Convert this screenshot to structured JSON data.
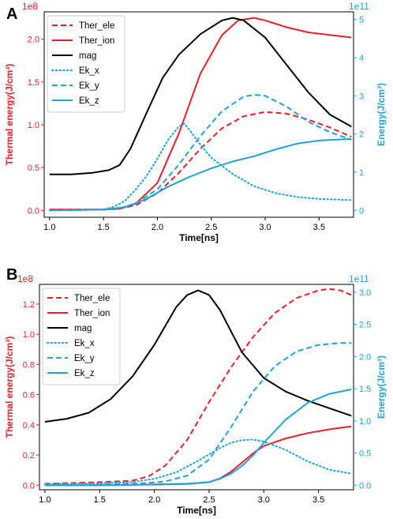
{
  "chart_data": [
    {
      "type": "line",
      "panel_label": "A",
      "xlabel": "Time[ns]",
      "ylabel_left": "Thermal energy(J/cm³)",
      "ylabel_right": "Energy(J/cm³)",
      "left_multiplier": "1e8",
      "right_multiplier": "1e11",
      "xlim": [
        0.95,
        3.82
      ],
      "ylim_left": [
        -0.08,
        2.32
      ],
      "ylim_right": [
        -0.18,
        5.2
      ],
      "x_ticks": [
        "1.0",
        "1.5",
        "2.0",
        "2.5",
        "3.0",
        "3.5"
      ],
      "y_left_ticks": [
        "0.0",
        "0.5",
        "1.0",
        "1.5",
        "2.0"
      ],
      "y_right_ticks": [
        "0",
        "1",
        "2",
        "3",
        "4",
        "5"
      ],
      "legend_position": "upper-left",
      "colors": {
        "left_axis": "#e8222a",
        "right_axis": "#1fa3d8"
      },
      "series": [
        {
          "name": "Ther_ele",
          "axis": "left",
          "color": "#e8222a",
          "style": "dashed",
          "x": [
            1.0,
            1.5,
            1.65,
            1.8,
            2.0,
            2.2,
            2.4,
            2.6,
            2.8,
            3.0,
            3.2,
            3.4,
            3.6,
            3.8
          ],
          "y": [
            0.01,
            0.01,
            0.02,
            0.06,
            0.2,
            0.44,
            0.72,
            0.96,
            1.1,
            1.15,
            1.13,
            1.06,
            0.97,
            0.86
          ]
        },
        {
          "name": "Ther_ion",
          "axis": "left",
          "color": "#e8222a",
          "style": "solid",
          "x": [
            1.0,
            1.5,
            1.65,
            1.8,
            2.0,
            2.2,
            2.4,
            2.6,
            2.75,
            2.9,
            3.0,
            3.2,
            3.4,
            3.6,
            3.8
          ],
          "y": [
            0.01,
            0.01,
            0.02,
            0.08,
            0.32,
            0.9,
            1.6,
            2.05,
            2.22,
            2.25,
            2.22,
            2.14,
            2.08,
            2.05,
            2.02
          ]
        },
        {
          "name": "mag",
          "axis": "left",
          "color": "#000000",
          "style": "solid",
          "x": [
            1.0,
            1.2,
            1.4,
            1.55,
            1.65,
            1.75,
            1.9,
            2.05,
            2.2,
            2.4,
            2.6,
            2.7,
            2.8,
            3.0,
            3.2,
            3.4,
            3.6,
            3.8
          ],
          "y": [
            0.42,
            0.42,
            0.44,
            0.47,
            0.53,
            0.72,
            1.14,
            1.55,
            1.82,
            2.06,
            2.22,
            2.25,
            2.22,
            2.02,
            1.7,
            1.38,
            1.12,
            0.98
          ]
        },
        {
          "name": "Ek_x",
          "axis": "right",
          "color": "#1fa3d8",
          "style": "dotted",
          "x": [
            1.0,
            1.5,
            1.6,
            1.7,
            1.8,
            1.9,
            2.0,
            2.1,
            2.2,
            2.25,
            2.3,
            2.4,
            2.5,
            2.7,
            2.9,
            3.1,
            3.3,
            3.5,
            3.8
          ],
          "y": [
            0.0,
            0.02,
            0.1,
            0.25,
            0.55,
            0.9,
            1.35,
            1.85,
            2.2,
            2.27,
            2.1,
            1.72,
            1.38,
            0.95,
            0.63,
            0.45,
            0.35,
            0.3,
            0.27
          ]
        },
        {
          "name": "Ek_y",
          "axis": "right",
          "color": "#1fa3d8",
          "style": "dashed",
          "x": [
            1.0,
            1.5,
            1.65,
            1.8,
            2.0,
            2.2,
            2.4,
            2.6,
            2.8,
            2.9,
            3.0,
            3.2,
            3.4,
            3.6,
            3.8
          ],
          "y": [
            0.0,
            0.02,
            0.06,
            0.18,
            0.55,
            1.2,
            1.95,
            2.6,
            2.98,
            3.03,
            3.0,
            2.72,
            2.32,
            2.05,
            1.85
          ]
        },
        {
          "name": "Ek_z",
          "axis": "right",
          "color": "#1fa3d8",
          "style": "solid",
          "x": [
            1.0,
            1.5,
            1.7,
            1.9,
            2.1,
            2.3,
            2.5,
            2.7,
            2.9,
            3.1,
            3.3,
            3.5,
            3.8
          ],
          "y": [
            0.0,
            0.02,
            0.08,
            0.3,
            0.62,
            0.88,
            1.1,
            1.28,
            1.42,
            1.6,
            1.75,
            1.83,
            1.87
          ]
        }
      ]
    },
    {
      "type": "line",
      "panel_label": "B",
      "xlabel": "Time[ns]",
      "ylabel_left": "Thermal energy(J/cm³)",
      "ylabel_right": "Energy(J/cm³)",
      "left_multiplier": "1e8",
      "right_multiplier": "1e11",
      "xlim": [
        0.95,
        3.82
      ],
      "ylim_left": [
        -0.03,
        1.33
      ],
      "ylim_right": [
        -0.07,
        3.12
      ],
      "x_ticks": [
        "1.0",
        "1.5",
        "2.0",
        "2.5",
        "3.0",
        "3.5"
      ],
      "y_left_ticks": [
        "0.0",
        "0.2",
        "0.4",
        "0.6",
        "0.8",
        "1.0",
        "1.2"
      ],
      "y_right_ticks": [
        "0.0",
        "0.5",
        "1.0",
        "1.5",
        "2.0",
        "2.5",
        "3.0"
      ],
      "legend_position": "upper-left",
      "colors": {
        "left_axis": "#e8222a",
        "right_axis": "#1fa3d8"
      },
      "series": [
        {
          "name": "Ther_ele",
          "axis": "left",
          "color": "#e8222a",
          "style": "dashed",
          "x": [
            1.0,
            1.5,
            1.8,
            1.95,
            2.1,
            2.3,
            2.5,
            2.7,
            2.9,
            3.1,
            3.3,
            3.5,
            3.6,
            3.7,
            3.8
          ],
          "y": [
            0.01,
            0.02,
            0.03,
            0.06,
            0.13,
            0.3,
            0.55,
            0.78,
            0.98,
            1.14,
            1.24,
            1.29,
            1.3,
            1.29,
            1.26
          ]
        },
        {
          "name": "Ther_ion",
          "axis": "left",
          "color": "#e8222a",
          "style": "solid",
          "x": [
            1.0,
            1.5,
            2.0,
            2.3,
            2.5,
            2.6,
            2.7,
            2.8,
            2.9,
            3.0,
            3.2,
            3.4,
            3.6,
            3.8
          ],
          "y": [
            0.0,
            0.0,
            0.005,
            0.01,
            0.02,
            0.045,
            0.09,
            0.15,
            0.21,
            0.26,
            0.31,
            0.345,
            0.37,
            0.39
          ]
        },
        {
          "name": "mag",
          "axis": "left",
          "color": "#000000",
          "style": "solid",
          "x": [
            1.0,
            1.2,
            1.4,
            1.6,
            1.8,
            2.0,
            2.2,
            2.3,
            2.4,
            2.5,
            2.6,
            2.7,
            2.8,
            3.0,
            3.2,
            3.4,
            3.6,
            3.8
          ],
          "y": [
            0.42,
            0.44,
            0.48,
            0.57,
            0.72,
            0.93,
            1.18,
            1.26,
            1.29,
            1.26,
            1.16,
            1.02,
            0.88,
            0.71,
            0.62,
            0.56,
            0.51,
            0.46
          ]
        },
        {
          "name": "Ek_x",
          "axis": "right",
          "color": "#1fa3d8",
          "style": "dotted",
          "x": [
            1.0,
            1.5,
            1.8,
            2.0,
            2.2,
            2.4,
            2.6,
            2.7,
            2.8,
            2.9,
            3.0,
            3.2,
            3.4,
            3.6,
            3.8
          ],
          "y": [
            0.02,
            0.03,
            0.05,
            0.1,
            0.2,
            0.38,
            0.58,
            0.66,
            0.7,
            0.71,
            0.68,
            0.55,
            0.37,
            0.24,
            0.18
          ]
        },
        {
          "name": "Ek_y",
          "axis": "right",
          "color": "#1fa3d8",
          "style": "dashed",
          "x": [
            1.0,
            1.5,
            1.9,
            2.1,
            2.3,
            2.5,
            2.7,
            2.9,
            3.1,
            3.3,
            3.5,
            3.7,
            3.8
          ],
          "y": [
            0.0,
            0.01,
            0.03,
            0.06,
            0.15,
            0.4,
            0.9,
            1.45,
            1.85,
            2.08,
            2.18,
            2.21,
            2.21
          ]
        },
        {
          "name": "Ek_z",
          "axis": "right",
          "color": "#1fa3d8",
          "style": "solid",
          "x": [
            1.0,
            1.5,
            2.0,
            2.3,
            2.5,
            2.6,
            2.7,
            2.8,
            2.9,
            3.0,
            3.2,
            3.4,
            3.6,
            3.8
          ],
          "y": [
            0.0,
            0.0,
            0.01,
            0.02,
            0.05,
            0.1,
            0.18,
            0.3,
            0.46,
            0.66,
            1.02,
            1.28,
            1.42,
            1.49
          ]
        }
      ]
    }
  ]
}
